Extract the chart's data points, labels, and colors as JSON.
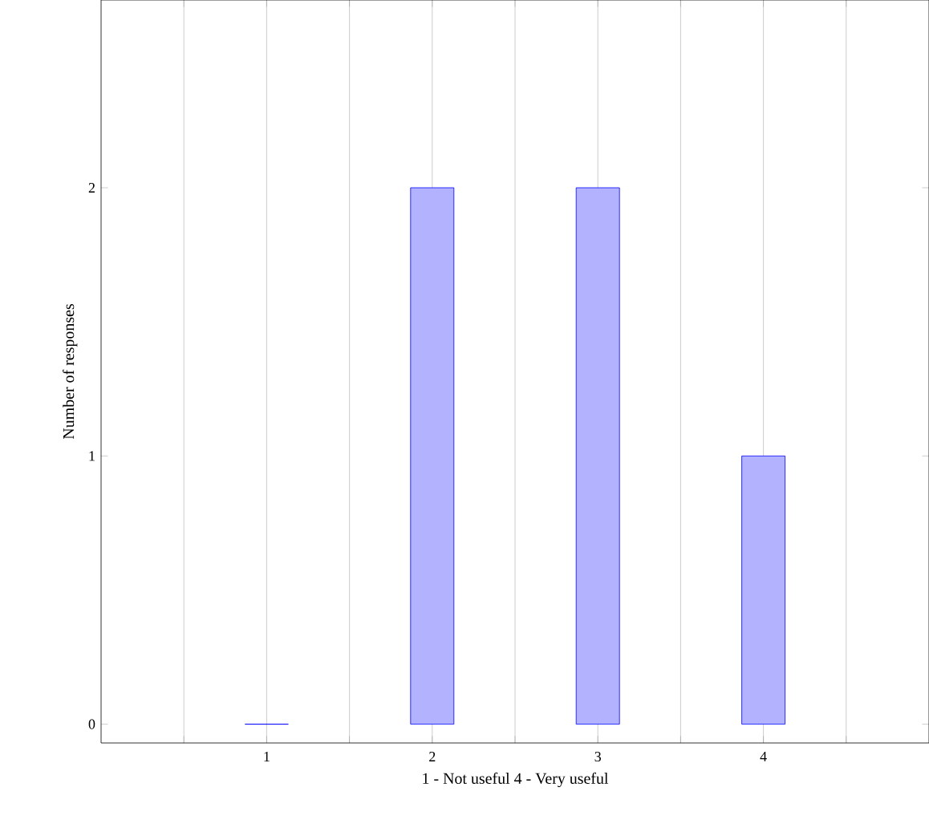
{
  "chart_data": {
    "type": "bar",
    "xlabel": "1 - Not useful 4 - Very useful",
    "ylabel": "Number of responses",
    "x": [
      1,
      2,
      3,
      4
    ],
    "values": [
      0,
      2,
      2,
      1
    ],
    "color": "#0000ff",
    "xlim": [
      0,
      5
    ],
    "ylim": [
      -0.07,
      2.7
    ],
    "xticks": [
      {
        "value": 0.5,
        "label": null
      },
      1,
      {
        "value": 1.5,
        "label": null
      },
      2,
      {
        "value": 2.5,
        "label": null
      },
      3,
      {
        "value": 3.5,
        "label": null
      },
      4,
      {
        "value": 4.5,
        "label": null
      }
    ],
    "yticks": [
      0,
      1,
      2
    ],
    "grid": "x"
  }
}
